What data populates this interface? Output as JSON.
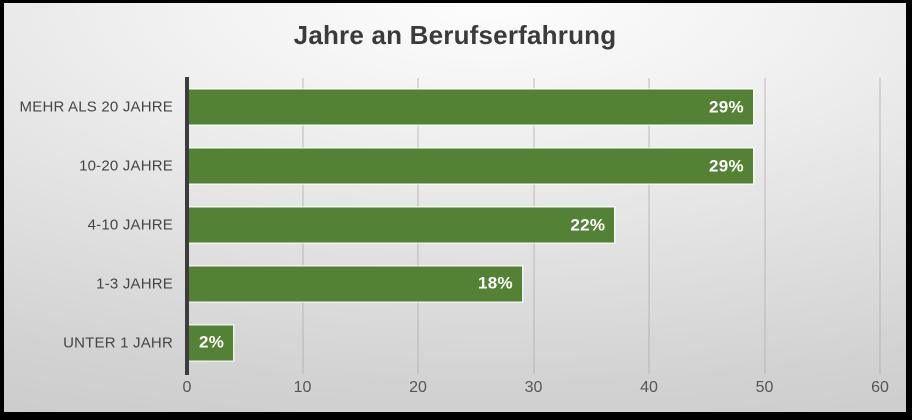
{
  "frame": {
    "border_color": "#000000"
  },
  "chart_data": {
    "type": "bar",
    "orientation": "horizontal",
    "title": "Jahre an Berufserfahrung",
    "categories": [
      "MEHR ALS 20 JAHRE",
      "10-20 JAHRE",
      "4-10 JAHRE",
      "1-3 JAHRE",
      "UNTER 1 JAHR"
    ],
    "values": [
      49,
      49,
      37,
      29,
      4
    ],
    "data_labels": [
      "29%",
      "29%",
      "22%",
      "18%",
      "2%"
    ],
    "x_ticks": [
      0,
      10,
      20,
      30,
      40,
      50,
      60
    ],
    "xlim": [
      0,
      60
    ],
    "xlabel": "",
    "ylabel": "",
    "grid": true,
    "legend": false,
    "colors": {
      "bar": "#548235",
      "bar_label": "#ffffff",
      "gridline": "#a9a9a9",
      "axis_line": "#3c3c3c",
      "title": "#3b3b3b",
      "category_label": "#454545",
      "tick_label": "#565656"
    }
  }
}
